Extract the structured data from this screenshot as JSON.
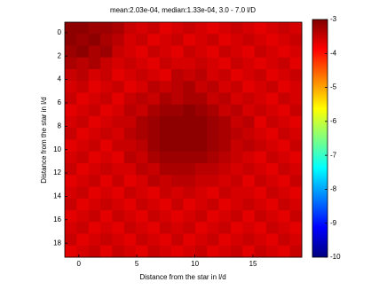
{
  "chart_data": {
    "type": "heatmap",
    "title": "mean:2.03e-04, median:1.33e-04, 3.0 - 7.0 l/D",
    "x_label": "Distance from the star in l/d",
    "y_label": "Distance from the star in l/d",
    "xlim": [
      -1.2,
      19.2
    ],
    "xticks": [
      0,
      5,
      10,
      15
    ],
    "ylim": [
      -0.9,
      19.2
    ],
    "yticks": [
      0,
      2,
      4,
      6,
      8,
      10,
      12,
      14,
      16,
      18
    ],
    "clim": [
      -10,
      -3
    ],
    "cticks": [
      -3,
      -4,
      -5,
      -6,
      -7,
      -8,
      -9,
      -10
    ],
    "colormap": "jet",
    "z": [
      [
        -3.1,
        -3.1,
        -3.2,
        -3.2,
        -3.3,
        -3.5,
        -3.6,
        -3.5,
        -3.7,
        -3.6,
        -3.5,
        -3.6,
        -3.7,
        -3.6,
        -3.5,
        -3.6,
        -3.7,
        -3.6,
        -3.5,
        -3.6
      ],
      [
        -3.1,
        -3.2,
        -3.1,
        -3.3,
        -3.4,
        -3.6,
        -3.5,
        -3.7,
        -3.6,
        -3.5,
        -3.7,
        -3.6,
        -3.5,
        -3.7,
        -3.6,
        -3.5,
        -3.6,
        -3.7,
        -3.6,
        -3.5
      ],
      [
        -3.2,
        -3.1,
        -3.3,
        -3.2,
        -3.5,
        -3.6,
        -3.7,
        -3.5,
        -3.6,
        -3.7,
        -3.5,
        -3.6,
        -3.7,
        -3.5,
        -3.6,
        -3.7,
        -3.5,
        -3.6,
        -3.7,
        -3.6
      ],
      [
        -3.3,
        -3.4,
        -3.3,
        -3.5,
        -3.6,
        -3.5,
        -3.6,
        -3.7,
        -3.5,
        -3.6,
        -3.6,
        -3.5,
        -3.6,
        -3.7,
        -3.5,
        -3.6,
        -3.7,
        -3.6,
        -3.5,
        -3.7
      ],
      [
        -3.5,
        -3.4,
        -3.6,
        -3.5,
        -3.7,
        -3.6,
        -3.5,
        -3.6,
        -3.7,
        -3.4,
        -3.5,
        -3.4,
        -3.6,
        -3.5,
        -3.7,
        -3.6,
        -3.5,
        -3.7,
        -3.6,
        -3.5
      ],
      [
        -3.6,
        -3.5,
        -3.7,
        -3.6,
        -3.5,
        -3.7,
        -3.6,
        -3.4,
        -3.5,
        -3.4,
        -3.3,
        -3.5,
        -3.4,
        -3.6,
        -3.5,
        -3.7,
        -3.6,
        -3.5,
        -3.7,
        -3.6
      ],
      [
        -3.5,
        -3.7,
        -3.6,
        -3.5,
        -3.7,
        -3.5,
        -3.4,
        -3.5,
        -3.3,
        -3.4,
        -3.3,
        -3.3,
        -3.5,
        -3.4,
        -3.6,
        -3.5,
        -3.6,
        -3.7,
        -3.5,
        -3.6
      ],
      [
        -3.7,
        -3.6,
        -3.5,
        -3.7,
        -3.6,
        -3.4,
        -3.5,
        -3.3,
        -3.2,
        -3.2,
        -3.1,
        -3.2,
        -3.3,
        -3.5,
        -3.4,
        -3.6,
        -3.5,
        -3.6,
        -3.7,
        -3.5
      ],
      [
        -3.6,
        -3.5,
        -3.7,
        -3.6,
        -3.5,
        -3.5,
        -3.3,
        -3.2,
        -3.1,
        -3.1,
        -3.1,
        -3.1,
        -3.2,
        -3.3,
        -3.5,
        -3.4,
        -3.7,
        -3.5,
        -3.6,
        -3.7
      ],
      [
        -3.5,
        -3.7,
        -3.6,
        -3.5,
        -3.6,
        -3.4,
        -3.3,
        -3.2,
        -3.1,
        -3.1,
        -3.1,
        -3.1,
        -3.2,
        -3.3,
        -3.4,
        -3.5,
        -3.6,
        -3.7,
        -3.5,
        -3.6
      ],
      [
        -3.7,
        -3.6,
        -3.5,
        -3.7,
        -3.5,
        -3.5,
        -3.4,
        -3.2,
        -3.1,
        -3.1,
        -3.1,
        -3.1,
        -3.2,
        -3.3,
        -3.5,
        -3.4,
        -3.5,
        -3.6,
        -3.7,
        -3.5
      ],
      [
        -3.6,
        -3.5,
        -3.7,
        -3.6,
        -3.7,
        -3.4,
        -3.5,
        -3.3,
        -3.2,
        -3.2,
        -3.2,
        -3.2,
        -3.3,
        -3.4,
        -3.5,
        -3.6,
        -3.7,
        -3.5,
        -3.6,
        -3.7
      ],
      [
        -3.5,
        -3.7,
        -3.6,
        -3.5,
        -3.6,
        -3.6,
        -3.4,
        -3.5,
        -3.3,
        -3.3,
        -3.3,
        -3.4,
        -3.4,
        -3.5,
        -3.6,
        -3.5,
        -3.6,
        -3.7,
        -3.5,
        -3.6
      ],
      [
        -3.7,
        -3.6,
        -3.5,
        -3.7,
        -3.5,
        -3.7,
        -3.6,
        -3.4,
        -3.5,
        -3.4,
        -3.4,
        -3.5,
        -3.5,
        -3.6,
        -3.5,
        -3.7,
        -3.5,
        -3.6,
        -3.7,
        -3.5
      ],
      [
        -3.6,
        -3.5,
        -3.7,
        -3.6,
        -3.7,
        -3.5,
        -3.6,
        -3.7,
        -3.5,
        -3.6,
        -3.5,
        -3.6,
        -3.7,
        -3.5,
        -3.6,
        -3.6,
        -3.7,
        -3.5,
        -3.6,
        -3.7
      ],
      [
        -3.5,
        -3.7,
        -3.6,
        -3.5,
        -3.6,
        -3.7,
        -3.5,
        -3.6,
        -3.7,
        -3.5,
        -3.7,
        -3.6,
        -3.5,
        -3.7,
        -3.6,
        -3.5,
        -3.6,
        -3.7,
        -3.5,
        -3.6
      ],
      [
        -3.7,
        -3.6,
        -3.5,
        -3.7,
        -3.5,
        -3.6,
        -3.7,
        -3.5,
        -3.6,
        -3.7,
        -3.6,
        -3.5,
        -3.7,
        -3.6,
        -3.5,
        -3.7,
        -3.5,
        -3.6,
        -3.7,
        -3.5
      ],
      [
        -3.6,
        -3.5,
        -3.7,
        -3.6,
        -3.7,
        -3.5,
        -3.6,
        -3.7,
        -3.5,
        -3.6,
        -3.5,
        -3.7,
        -3.6,
        -3.5,
        -3.7,
        -3.6,
        -3.7,
        -3.5,
        -3.6,
        -3.7
      ],
      [
        -3.5,
        -3.7,
        -3.6,
        -3.5,
        -3.6,
        -3.7,
        -3.5,
        -3.6,
        -3.7,
        -3.5,
        -3.7,
        -3.6,
        -3.5,
        -3.7,
        -3.6,
        -3.5,
        -3.6,
        -3.7,
        -3.5,
        -3.6
      ],
      [
        -3.7,
        -3.6,
        -3.5,
        -3.7,
        -3.5,
        -3.6,
        -3.7,
        -3.5,
        -3.6,
        -3.7,
        -3.6,
        -3.5,
        -3.7,
        -3.6,
        -3.5,
        -3.7,
        -3.5,
        -3.6,
        -3.7,
        -3.5
      ]
    ]
  }
}
